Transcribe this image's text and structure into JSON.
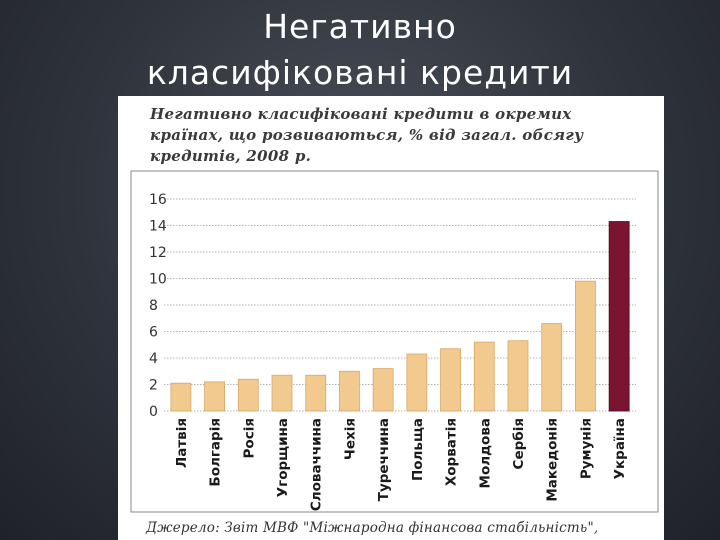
{
  "slide": {
    "title_line1": "Негативно",
    "title_line2": "класифіковані кредити"
  },
  "chart_data": {
    "type": "bar",
    "title_line1": "Негативно класифіковані кредити в окремих",
    "title_line2": "країнах, що розвиваються, % від загал. обсягу",
    "title_line3": "кредитів, 2008 р.",
    "source": "Джерело: Звіт МВФ \"Міжнародна фінансова стабільність\",",
    "categories": [
      "Латвія",
      "Болгарія",
      "Росія",
      "Угорщина",
      "Словаччина",
      "Чехія",
      "Туреччина",
      "Польща",
      "Хорватія",
      "Молдова",
      "Сербія",
      "Македонія",
      "Румунія",
      "Україна"
    ],
    "values": [
      2.1,
      2.2,
      2.4,
      2.7,
      2.7,
      3.0,
      3.2,
      4.3,
      4.7,
      5.2,
      5.3,
      6.6,
      9.8,
      14.3
    ],
    "ylim": [
      0,
      16
    ],
    "yticks": [
      "0",
      "2",
      "4",
      "6",
      "8",
      "10",
      "12",
      "14",
      "16"
    ],
    "grid": true,
    "colors": {
      "bar": "#f2c98f",
      "bar_highlight": "#7a1430",
      "grid": "#9a9a9a"
    }
  }
}
